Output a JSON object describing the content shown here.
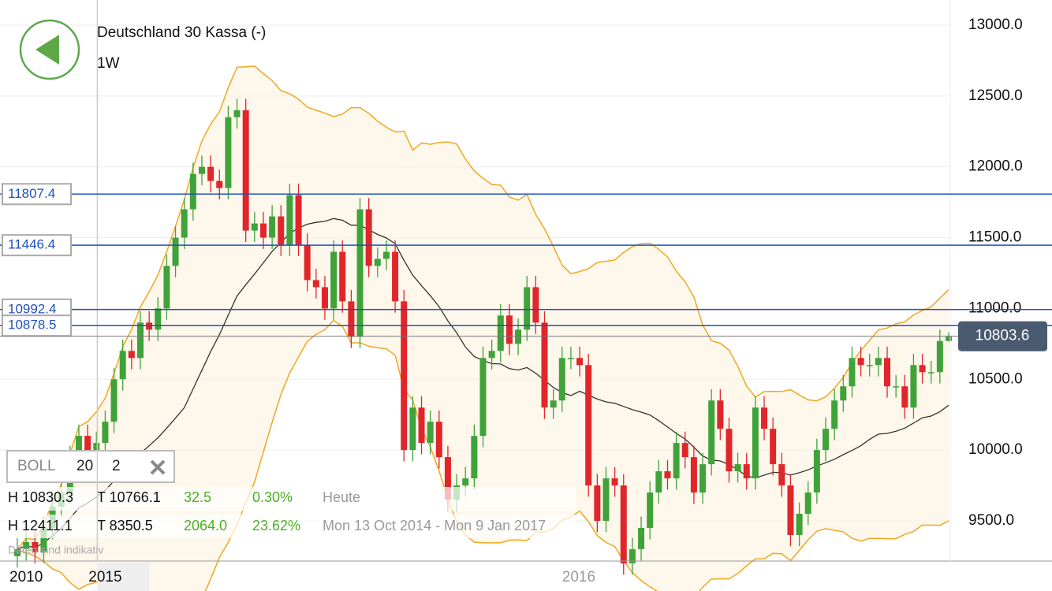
{
  "chart_data": {
    "type": "candlestick",
    "title": "Deutschland 30 Kassa (-)",
    "interval": "1W",
    "categories": [
      null,
      "2010",
      null,
      null,
      null,
      null,
      null,
      null,
      null,
      null,
      "2015",
      null,
      null,
      null,
      null,
      null,
      null,
      null,
      null,
      null,
      null,
      null,
      null,
      null,
      null,
      null,
      null,
      null,
      null,
      null,
      null,
      null,
      null,
      null,
      null,
      null,
      null,
      null,
      null,
      null,
      null,
      null,
      null,
      null,
      null,
      null,
      null,
      null,
      null,
      null,
      null,
      null,
      null,
      null,
      null,
      null,
      null,
      null,
      null,
      null,
      null,
      null,
      null,
      "2016",
      null,
      null,
      null,
      null,
      null,
      null,
      null,
      null,
      null,
      null,
      null,
      null,
      null,
      null,
      null,
      null,
      null,
      null,
      null,
      null,
      null,
      null,
      null,
      null,
      null,
      null,
      null,
      null,
      null,
      null,
      null,
      null,
      null,
      null,
      null,
      null,
      null,
      null,
      null,
      null,
      null,
      null,
      null
    ],
    "open": [
      9250,
      9300,
      9350,
      9280,
      9450,
      9600,
      9700,
      9950,
      10100,
      9900,
      10050,
      10200,
      10500,
      10700,
      10650,
      10900,
      10850,
      11000,
      11300,
      11500,
      11700,
      11950,
      12000,
      11900,
      11850,
      12350,
      12400,
      11550,
      11600,
      11500,
      11650,
      11450,
      11800,
      11450,
      11200,
      11150,
      11000,
      11400,
      11050,
      10800,
      11700,
      11300,
      11350,
      11400,
      11050,
      10000,
      10300,
      10050,
      10200,
      9950,
      9650,
      9750,
      9800,
      10100,
      10650,
      10700,
      10950,
      10750,
      10850,
      11150,
      10900,
      10300,
      10350,
      10650,
      10650,
      10600,
      9750,
      9500,
      9800,
      9750,
      9200,
      9300,
      9450,
      9700,
      9850,
      9800,
      10050,
      9950,
      9700,
      9900,
      10350,
      10150,
      9850,
      9900,
      9800,
      10300,
      10150,
      9900,
      9750,
      9400,
      9550,
      9700,
      10000,
      10150,
      10350,
      10450,
      10650,
      10600,
      10600,
      10650,
      10450,
      10450,
      10300,
      10600,
      10550,
      10550,
      10770
    ],
    "high": [
      9380,
      9430,
      9430,
      9530,
      9680,
      9780,
      10030,
      10180,
      10180,
      10130,
      10280,
      10580,
      10780,
      10780,
      10980,
      10980,
      11080,
      11380,
      11580,
      11780,
      12030,
      12080,
      12080,
      11980,
      12430,
      12480,
      12480,
      11680,
      11680,
      11730,
      11730,
      11880,
      11880,
      11530,
      11280,
      11230,
      11480,
      11480,
      11130,
      11780,
      11780,
      11430,
      11480,
      11480,
      11130,
      10380,
      10380,
      10280,
      10280,
      10030,
      9830,
      9880,
      10180,
      10730,
      10780,
      11030,
      11030,
      10930,
      11230,
      11230,
      10980,
      10430,
      10730,
      10730,
      10730,
      10680,
      9830,
      9880,
      9880,
      9830,
      9380,
      9530,
      9780,
      9930,
      9930,
      10130,
      10130,
      10030,
      9980,
      10430,
      10430,
      10230,
      9980,
      9980,
      10380,
      10380,
      10230,
      9980,
      9830,
      9630,
      9780,
      10080,
      10230,
      10430,
      10530,
      10730,
      10730,
      10680,
      10730,
      10730,
      10530,
      10530,
      10680,
      10680,
      10630,
      10850,
      10830.3
    ],
    "low": [
      9170,
      9220,
      9200,
      9200,
      9370,
      9520,
      9620,
      9870,
      9820,
      9820,
      9970,
      10120,
      10420,
      10570,
      10570,
      10770,
      10770,
      10920,
      11220,
      11420,
      11620,
      11870,
      11820,
      11770,
      11770,
      12270,
      11470,
      11470,
      11420,
      11420,
      11370,
      11370,
      11370,
      11120,
      11070,
      10920,
      10920,
      10970,
      10720,
      10720,
      11220,
      11220,
      11270,
      10970,
      9920,
      9920,
      9970,
      9970,
      9870,
      9570,
      9570,
      9670,
      9720,
      10020,
      10570,
      10620,
      10670,
      10670,
      10770,
      10820,
      10220,
      10220,
      10270,
      10570,
      10520,
      9670,
      9420,
      9420,
      9670,
      9120,
      9120,
      9220,
      9370,
      9620,
      9720,
      9720,
      9870,
      9620,
      9620,
      9820,
      10070,
      9770,
      9770,
      9720,
      9720,
      10070,
      9820,
      9670,
      9320,
      9320,
      9470,
      9620,
      9920,
      10070,
      10270,
      10370,
      10520,
      10520,
      10520,
      10370,
      10370,
      10220,
      10220,
      10470,
      10470,
      10470,
      10766.1
    ],
    "close": [
      9300,
      9350,
      9280,
      9450,
      9600,
      9700,
      9950,
      10100,
      9900,
      10050,
      10200,
      10500,
      10700,
      10650,
      10900,
      10850,
      11000,
      11300,
      11500,
      11700,
      11950,
      12000,
      11900,
      11850,
      12350,
      12400,
      11550,
      11600,
      11500,
      11650,
      11450,
      11800,
      11450,
      11200,
      11150,
      11000,
      11400,
      11050,
      10800,
      11700,
      11300,
      11350,
      11400,
      11050,
      10000,
      10300,
      10050,
      10200,
      9950,
      9650,
      9750,
      9800,
      10100,
      10650,
      10700,
      10950,
      10750,
      10850,
      11150,
      10900,
      10300,
      10350,
      10650,
      10650,
      10600,
      9750,
      9500,
      9800,
      9750,
      9200,
      9300,
      9450,
      9700,
      9850,
      9800,
      10050,
      9950,
      9700,
      9900,
      10350,
      10150,
      9850,
      9900,
      9800,
      10300,
      10150,
      9900,
      9750,
      9400,
      9550,
      9700,
      10000,
      10150,
      10350,
      10450,
      10650,
      10600,
      10600,
      10650,
      10450,
      10450,
      10300,
      10600,
      10550,
      10550,
      10770,
      10803.6
    ],
    "up_color": "#3fa33a",
    "down_color": "#e0262b",
    "ylim": [
      9216,
      13178
    ],
    "yticks": [
      {
        "value": 9500,
        "label": "9500.0"
      },
      {
        "value": 10000,
        "label": "10000.0"
      },
      {
        "value": 10500,
        "label": "10500.0"
      },
      {
        "value": 11000,
        "label": "11000.0"
      },
      {
        "value": 11500,
        "label": "11500.0"
      },
      {
        "value": 12000,
        "label": "12000.0"
      },
      {
        "value": 12500,
        "label": "12500.0"
      },
      {
        "value": 13000,
        "label": "13000.0"
      }
    ],
    "grid": true,
    "levels": [
      {
        "value": 11807.4,
        "label": "11807.4"
      },
      {
        "value": 11446.4,
        "label": "11446.4"
      },
      {
        "value": 10992.4,
        "label": "10992.4"
      },
      {
        "value": 10878.5,
        "label": "10878.5"
      }
    ],
    "last": {
      "value": 10803.6,
      "label": "10803.6"
    },
    "boll": {
      "name": "BOLL",
      "period": 20,
      "deviation": 2,
      "color": "#f0a820"
    },
    "stats": [
      {
        "high": "H 10830.3",
        "low": "T 10766.1",
        "change": "32.5",
        "percent": "0.30%",
        "range": "Heute"
      },
      {
        "high": "H 12411.1",
        "low": "T 8350.5",
        "change": "2064.0",
        "percent": "23.62%",
        "range": "Mon 13 Oct 2014 - Mon 9 Jan 2017"
      }
    ],
    "footnote": "Daten sind indikativ"
  }
}
